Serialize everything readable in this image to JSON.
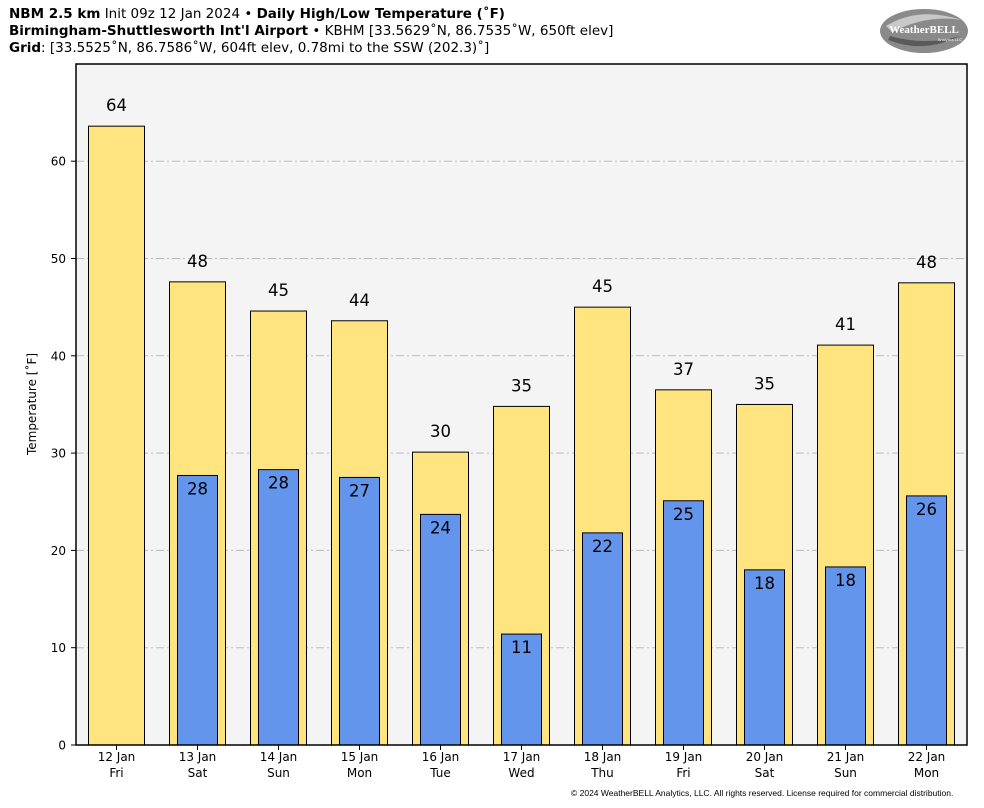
{
  "header": {
    "model": "NBM 2.5 km",
    "init": "Init 09z 12 Jan 2024",
    "sep": " • ",
    "product": "Daily High/Low Temperature (˚F)",
    "station_name": "Birmingham-Shuttlesworth Int'l Airport",
    "station_info": "KBHM [33.5629˚N, 86.7535˚W, 650ft elev]",
    "grid_label": "Grid",
    "grid_info": ": [33.5525˚N, 86.7586˚W, 604ft elev, 0.78mi to the SSW (202.3)˚]"
  },
  "logo": {
    "text": "WeatherBELL",
    "subtext": "Analytics LLC"
  },
  "copyright": "© 2024 WeatherBELL Analytics, LLC. All rights reserved. License required for commercial distribution.",
  "colors": {
    "high": "#FFE47F",
    "low": "#6495ED",
    "plot_bg": "#F4F4F4",
    "grid": "#BBBBBB"
  },
  "chart_data": {
    "type": "bar",
    "ylabel": "Temperature [˚F]",
    "ylim": [
      0,
      70
    ],
    "yticks": [
      0,
      10,
      20,
      30,
      40,
      50,
      60
    ],
    "grid": true,
    "categories": [
      [
        "12 Jan",
        "Fri"
      ],
      [
        "13 Jan",
        "Sat"
      ],
      [
        "14 Jan",
        "Sun"
      ],
      [
        "15 Jan",
        "Mon"
      ],
      [
        "16 Jan",
        "Tue"
      ],
      [
        "17 Jan",
        "Wed"
      ],
      [
        "18 Jan",
        "Thu"
      ],
      [
        "19 Jan",
        "Fri"
      ],
      [
        "20 Jan",
        "Sat"
      ],
      [
        "21 Jan",
        "Sun"
      ],
      [
        "22 Jan",
        "Mon"
      ]
    ],
    "series": [
      {
        "key": "high",
        "values": [
          63.6,
          47.6,
          44.6,
          43.6,
          30.1,
          34.8,
          45.0,
          36.5,
          35.0,
          41.1,
          47.5
        ],
        "labels": [
          "64",
          "48",
          "45",
          "44",
          "30",
          "35",
          "45",
          "37",
          "35",
          "41",
          "48"
        ]
      },
      {
        "key": "low",
        "values": [
          null,
          27.7,
          28.3,
          27.5,
          23.7,
          11.4,
          21.8,
          25.1,
          18.0,
          18.3,
          25.6
        ],
        "labels": [
          null,
          "28",
          "28",
          "27",
          "24",
          "11",
          "22",
          "25",
          "18",
          "18",
          "26"
        ]
      }
    ]
  }
}
